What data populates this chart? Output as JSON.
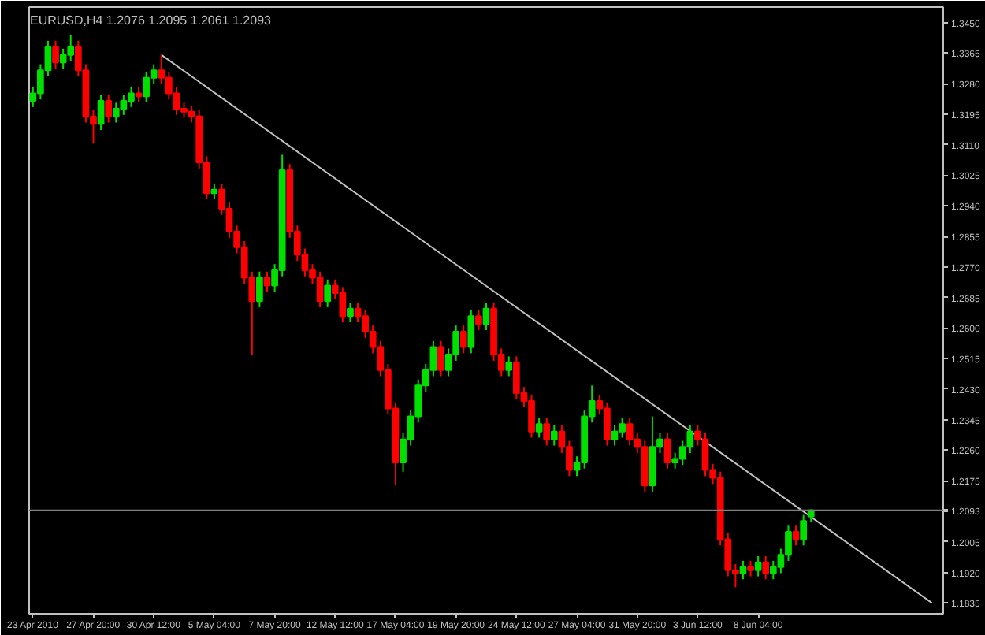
{
  "chart_data": {
    "type": "candlestick",
    "title": "EURUSD,H4  1.2076 1.2095 1.2061 1.2093",
    "categories": [
      "23 Apr 2010",
      null,
      null,
      null,
      null,
      null,
      null,
      null,
      "27 Apr 20:00",
      null,
      null,
      null,
      null,
      null,
      null,
      null,
      "30 Apr 12:00",
      null,
      null,
      null,
      null,
      null,
      null,
      null,
      "5 May 04:00",
      null,
      null,
      null,
      null,
      null,
      null,
      null,
      "7 May 20:00",
      null,
      null,
      null,
      null,
      null,
      null,
      null,
      "12 May 12:00",
      null,
      null,
      null,
      null,
      null,
      null,
      null,
      "17 May 04:00",
      null,
      null,
      null,
      null,
      null,
      null,
      null,
      "19 May 20:00",
      null,
      null,
      null,
      null,
      null,
      null,
      null,
      "24 May 12:00",
      null,
      null,
      null,
      null,
      null,
      null,
      null,
      "27 May 04:00",
      null,
      null,
      null,
      null,
      null,
      null,
      null,
      "31 May 20:00",
      null,
      null,
      null,
      null,
      null,
      null,
      null,
      "3 Jun 12:00",
      null,
      null,
      null,
      null,
      null,
      null,
      null,
      "8 Jun 04:00",
      null,
      null,
      null,
      null,
      null,
      null,
      null,
      null,
      null,
      null,
      null,
      null,
      null,
      null,
      null,
      null,
      null,
      null,
      null,
      null,
      null,
      null,
      null,
      null
    ],
    "ohlc": [
      [
        1.3232,
        1.327,
        1.3215,
        1.3253
      ],
      [
        1.3253,
        1.3334,
        1.3236,
        1.3317
      ],
      [
        1.3317,
        1.3399,
        1.33,
        1.3382
      ],
      [
        1.3382,
        1.3399,
        1.3322,
        1.3339
      ],
      [
        1.3339,
        1.3377,
        1.3322,
        1.336
      ],
      [
        1.336,
        1.3416,
        1.3343,
        1.3382
      ],
      [
        1.3382,
        1.3399,
        1.33,
        1.3317
      ],
      [
        1.3317,
        1.3334,
        1.3172,
        1.3189
      ],
      [
        1.3189,
        1.3206,
        1.3116,
        1.3168
      ],
      [
        1.3168,
        1.3249,
        1.3151,
        1.3232
      ],
      [
        1.3232,
        1.3249,
        1.3172,
        1.3189
      ],
      [
        1.3189,
        1.3227,
        1.3172,
        1.321
      ],
      [
        1.321,
        1.3249,
        1.3193,
        1.3232
      ],
      [
        1.3232,
        1.327,
        1.3215,
        1.3253
      ],
      [
        1.3253,
        1.327,
        1.3228,
        1.3245
      ],
      [
        1.3245,
        1.3313,
        1.3228,
        1.3296
      ],
      [
        1.3296,
        1.3334,
        1.3279,
        1.3317
      ],
      [
        1.3317,
        1.336,
        1.3279,
        1.3296
      ],
      [
        1.3296,
        1.3313,
        1.3236,
        1.3253
      ],
      [
        1.3253,
        1.327,
        1.3193,
        1.321
      ],
      [
        1.321,
        1.3227,
        1.3185,
        1.3202
      ],
      [
        1.3202,
        1.3219,
        1.3172,
        1.3189
      ],
      [
        1.3189,
        1.3206,
        1.3044,
        1.3061
      ],
      [
        1.3061,
        1.3078,
        1.2958,
        1.2975
      ],
      [
        1.2975,
        1.3002,
        1.2958,
        1.2985
      ],
      [
        1.2985,
        1.3002,
        1.2915,
        1.2932
      ],
      [
        1.2932,
        1.2949,
        1.2851,
        1.2868
      ],
      [
        1.2868,
        1.2885,
        1.2808,
        1.2825
      ],
      [
        1.2825,
        1.2842,
        1.2723,
        1.274
      ],
      [
        1.274,
        1.2757,
        1.2526,
        1.2675
      ],
      [
        1.2675,
        1.2757,
        1.2658,
        1.274
      ],
      [
        1.274,
        1.2757,
        1.2701,
        1.2718
      ],
      [
        1.2718,
        1.2778,
        1.2701,
        1.2761
      ],
      [
        1.2761,
        1.3082,
        1.2744,
        1.3039
      ],
      [
        1.3039,
        1.3056,
        1.2851,
        1.2868
      ],
      [
        1.2868,
        1.2885,
        1.2787,
        1.2804
      ],
      [
        1.2804,
        1.2821,
        1.2744,
        1.2761
      ],
      [
        1.2761,
        1.2778,
        1.2723,
        1.274
      ],
      [
        1.274,
        1.2757,
        1.2658,
        1.2675
      ],
      [
        1.2675,
        1.2735,
        1.2658,
        1.2718
      ],
      [
        1.2718,
        1.2735,
        1.268,
        1.2697
      ],
      [
        1.2697,
        1.2714,
        1.2616,
        1.2633
      ],
      [
        1.2633,
        1.2671,
        1.2616,
        1.2654
      ],
      [
        1.2654,
        1.2671,
        1.2616,
        1.2633
      ],
      [
        1.2633,
        1.265,
        1.2573,
        1.259
      ],
      [
        1.259,
        1.2607,
        1.253,
        1.2547
      ],
      [
        1.2547,
        1.2564,
        1.2466,
        1.2483
      ],
      [
        1.2483,
        1.25,
        1.2359,
        1.2376
      ],
      [
        1.2376,
        1.2393,
        1.2162,
        1.2226
      ],
      [
        1.2226,
        1.2307,
        1.22,
        1.229
      ],
      [
        1.229,
        1.2371,
        1.2273,
        1.2354
      ],
      [
        1.2354,
        1.2457,
        1.2337,
        1.244
      ],
      [
        1.244,
        1.25,
        1.2423,
        1.2483
      ],
      [
        1.2483,
        1.2564,
        1.2466,
        1.2547
      ],
      [
        1.2547,
        1.2564,
        1.2466,
        1.2483
      ],
      [
        1.2483,
        1.2543,
        1.2466,
        1.2526
      ],
      [
        1.2526,
        1.2607,
        1.2509,
        1.259
      ],
      [
        1.259,
        1.2607,
        1.253,
        1.2547
      ],
      [
        1.2547,
        1.265,
        1.253,
        1.2633
      ],
      [
        1.2633,
        1.265,
        1.2594,
        1.2611
      ],
      [
        1.2611,
        1.2671,
        1.2594,
        1.2654
      ],
      [
        1.2654,
        1.2671,
        1.2509,
        1.2526
      ],
      [
        1.2526,
        1.2543,
        1.2466,
        1.2483
      ],
      [
        1.2483,
        1.2521,
        1.2466,
        1.2504
      ],
      [
        1.2504,
        1.2521,
        1.2402,
        1.2419
      ],
      [
        1.2419,
        1.2436,
        1.238,
        1.2397
      ],
      [
        1.2397,
        1.2414,
        1.2295,
        1.2312
      ],
      [
        1.2312,
        1.235,
        1.2295,
        1.2333
      ],
      [
        1.2333,
        1.235,
        1.2273,
        1.229
      ],
      [
        1.229,
        1.2329,
        1.2273,
        1.2312
      ],
      [
        1.2312,
        1.2329,
        1.2252,
        1.2269
      ],
      [
        1.2269,
        1.2286,
        1.2188,
        1.2205
      ],
      [
        1.2205,
        1.2243,
        1.2188,
        1.2226
      ],
      [
        1.2226,
        1.2371,
        1.2209,
        1.2354
      ],
      [
        1.2354,
        1.244,
        1.2337,
        1.2397
      ],
      [
        1.2397,
        1.2414,
        1.2359,
        1.2376
      ],
      [
        1.2376,
        1.2393,
        1.2273,
        1.229
      ],
      [
        1.229,
        1.2329,
        1.2273,
        1.2312
      ],
      [
        1.2312,
        1.235,
        1.2295,
        1.2333
      ],
      [
        1.2333,
        1.235,
        1.2273,
        1.229
      ],
      [
        1.229,
        1.2307,
        1.2252,
        1.2269
      ],
      [
        1.2269,
        1.2286,
        1.2145,
        1.2162
      ],
      [
        1.2162,
        1.2354,
        1.2145,
        1.2269
      ],
      [
        1.2269,
        1.2307,
        1.2252,
        1.229
      ],
      [
        1.229,
        1.2307,
        1.2209,
        1.2226
      ],
      [
        1.2226,
        1.2253,
        1.2209,
        1.2236
      ],
      [
        1.2236,
        1.2286,
        1.2219,
        1.2269
      ],
      [
        1.2269,
        1.2329,
        1.2252,
        1.2312
      ],
      [
        1.2312,
        1.2329,
        1.2273,
        1.229
      ],
      [
        1.229,
        1.2307,
        1.2188,
        1.2205
      ],
      [
        1.2205,
        1.2222,
        1.2166,
        1.2183
      ],
      [
        1.2183,
        1.22,
        1.1995,
        1.2012
      ],
      [
        1.2012,
        1.2029,
        1.1909,
        1.1926
      ],
      [
        1.1926,
        1.1943,
        1.1879,
        1.1918
      ],
      [
        1.1918,
        1.1952,
        1.1901,
        1.1935
      ],
      [
        1.1935,
        1.1952,
        1.1909,
        1.1926
      ],
      [
        1.1926,
        1.1965,
        1.1909,
        1.1948
      ],
      [
        1.1948,
        1.1965,
        1.1901,
        1.1918
      ],
      [
        1.1918,
        1.1952,
        1.1901,
        1.1935
      ],
      [
        1.1935,
        1.1986,
        1.1918,
        1.1969
      ],
      [
        1.1969,
        1.205,
        1.1952,
        1.2033
      ],
      [
        1.2033,
        1.205,
        1.1995,
        1.2012
      ],
      [
        1.2012,
        1.208,
        1.1995,
        1.2063
      ],
      [
        1.2076,
        1.2095,
        1.2061,
        1.2093
      ],
      null,
      null,
      null,
      null,
      null,
      null,
      null,
      null,
      null,
      null,
      null,
      null,
      null,
      null,
      null,
      null,
      null
    ],
    "colors": [
      "#00e000",
      "#00e000",
      "#00e000",
      "#ff0000",
      "#00e000",
      "#00e000",
      "#ff0000",
      "#ff0000",
      "#ff0000",
      "#00e000",
      "#ff0000",
      "#00e000",
      "#00e000",
      "#00e000",
      "#ff0000",
      "#00e000",
      "#00e000",
      "#ff0000",
      "#ff0000",
      "#ff0000",
      "#ff0000",
      "#ff0000",
      "#ff0000",
      "#ff0000",
      "#00e000",
      "#ff0000",
      "#ff0000",
      "#ff0000",
      "#ff0000",
      "#ff0000",
      "#00e000",
      "#ff0000",
      "#00e000",
      "#00e000",
      "#ff0000",
      "#ff0000",
      "#ff0000",
      "#ff0000",
      "#ff0000",
      "#00e000",
      "#ff0000",
      "#ff0000",
      "#00e000",
      "#ff0000",
      "#ff0000",
      "#ff0000",
      "#ff0000",
      "#ff0000",
      "#ff0000",
      "#00e000",
      "#00e000",
      "#00e000",
      "#00e000",
      "#00e000",
      "#ff0000",
      "#00e000",
      "#00e000",
      "#ff0000",
      "#00e000",
      "#ff0000",
      "#00e000",
      "#ff0000",
      "#ff0000",
      "#00e000",
      "#ff0000",
      "#ff0000",
      "#ff0000",
      "#00e000",
      "#ff0000",
      "#00e000",
      "#ff0000",
      "#ff0000",
      "#00e000",
      "#00e000",
      "#00e000",
      "#ff0000",
      "#ff0000",
      "#00e000",
      "#00e000",
      "#ff0000",
      "#ff0000",
      "#ff0000",
      "#00e000",
      "#00e000",
      "#ff0000",
      "#00e000",
      "#00e000",
      "#00e000",
      "#ff0000",
      "#ff0000",
      "#ff0000",
      "#ff0000",
      "#ff0000",
      "#ff0000",
      "#00e000",
      "#ff0000",
      "#00e000",
      "#ff0000",
      "#00e000",
      "#00e000",
      "#00e000",
      "#ff0000",
      "#00e000",
      "#00e000",
      null,
      null,
      null,
      null,
      null,
      null,
      null,
      null,
      null,
      null,
      null,
      null,
      null,
      null,
      null,
      null,
      null
    ],
    "series": [
      {
        "type": "line",
        "color": "#c0c0c0",
        "values": [
          null,
          null,
          null,
          null,
          null,
          null,
          null,
          null,
          null,
          null,
          null,
          null,
          null,
          null,
          null,
          null,
          null,
          1.336,
          null,
          null,
          null,
          null,
          null,
          null,
          null,
          null,
          null,
          null,
          null,
          null,
          null,
          null,
          null,
          null,
          null,
          null,
          null,
          null,
          null,
          null,
          null,
          null,
          null,
          null,
          null,
          null,
          null,
          null,
          null,
          null,
          null,
          null,
          null,
          null,
          null,
          null,
          null,
          null,
          null,
          null,
          null,
          null,
          null,
          null,
          null,
          null,
          null,
          null,
          null,
          null,
          null,
          null,
          null,
          null,
          null,
          null,
          null,
          null,
          null,
          null,
          null,
          null,
          null,
          null,
          null,
          null,
          null,
          null,
          null,
          null,
          null,
          null,
          null,
          null,
          null,
          null,
          null,
          null,
          null,
          null,
          null,
          null,
          null,
          null,
          null,
          null,
          null,
          null,
          null,
          null,
          null,
          null,
          null,
          null,
          null,
          null,
          null,
          null,
          null,
          1.1835,
          null
        ]
      }
    ],
    "ref_lines": [
      {
        "axis": "y",
        "value": 1.2093,
        "label": "1.2093",
        "color": "#808080"
      }
    ],
    "ylim": [
      1.1805,
      1.3493
    ],
    "yticks": [
      {
        "value": 1.345,
        "label": "1.3450"
      },
      {
        "value": 1.3365,
        "label": "1.3365"
      },
      {
        "value": 1.328,
        "label": "1.3280"
      },
      {
        "value": 1.3195,
        "label": "1.3195"
      },
      {
        "value": 1.311,
        "label": "1.3110"
      },
      {
        "value": 1.3025,
        "label": "1.3025"
      },
      {
        "value": 1.294,
        "label": "1.2940"
      },
      {
        "value": 1.2855,
        "label": "1.2855"
      },
      {
        "value": 1.277,
        "label": "1.2770"
      },
      {
        "value": 1.2685,
        "label": "1.2685"
      },
      {
        "value": 1.26,
        "label": "1.2600"
      },
      {
        "value": 1.2515,
        "label": "1.2515"
      },
      {
        "value": 1.243,
        "label": "1.2430"
      },
      {
        "value": 1.2345,
        "label": "1.2345"
      },
      {
        "value": 1.226,
        "label": "1.2260"
      },
      {
        "value": 1.2175,
        "label": "1.2175"
      },
      {
        "value": 1.209,
        "label": null
      },
      {
        "value": 1.2005,
        "label": "1.2005"
      },
      {
        "value": 1.192,
        "label": "1.1920"
      },
      {
        "value": 1.1835,
        "label": "1.1835"
      }
    ],
    "grid": false
  }
}
